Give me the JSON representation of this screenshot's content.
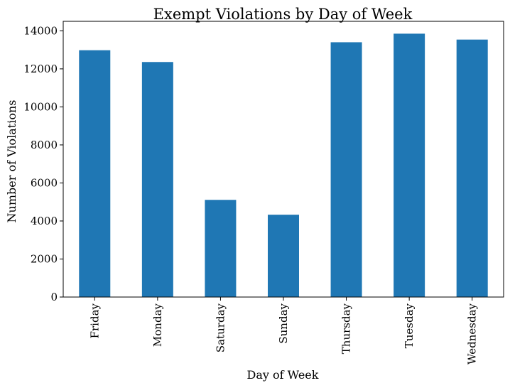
{
  "chart_data": {
    "type": "bar",
    "title": "Exempt Violations by Day of Week",
    "xlabel": "Day of Week",
    "ylabel": "Number of Violations",
    "categories": [
      "Friday",
      "Monday",
      "Saturday",
      "Sunday",
      "Thursday",
      "Tuesday",
      "Wednesday"
    ],
    "values": [
      12980,
      12360,
      5110,
      4330,
      13400,
      13850,
      13540
    ],
    "ylim": [
      0,
      14500
    ],
    "yticks": [
      0,
      2000,
      4000,
      6000,
      8000,
      10000,
      12000,
      14000
    ],
    "ytick_labels": [
      "0",
      "2000",
      "4000",
      "6000",
      "8000",
      "10000",
      "12000",
      "14000"
    ],
    "grid": false,
    "bar_color": "#1f77b4"
  }
}
